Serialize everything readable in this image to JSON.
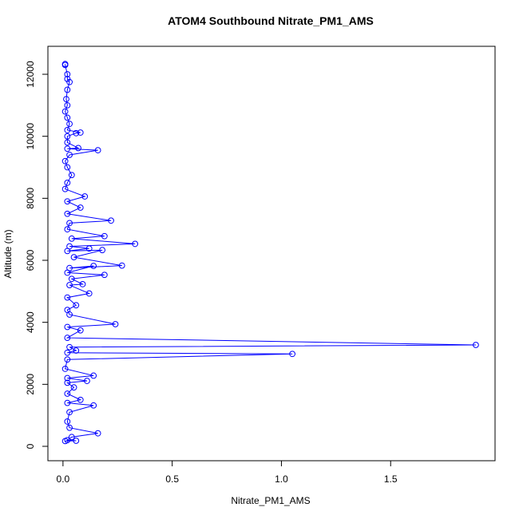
{
  "chart_data": {
    "type": "line",
    "title": "ATOM4 Southbound Nitrate_PM1_AMS",
    "x_label": "Nitrate_PM1_AMS",
    "y_label": "Altitude (m)",
    "color": "#0000ff",
    "markers": true,
    "x": [
      0.01,
      0.01,
      0.02,
      0.02,
      0.03,
      0.02,
      0.015,
      0.02,
      0.01,
      0.02,
      0.03,
      0.02,
      0.08,
      0.06,
      0.02,
      0.02,
      0.07,
      0.02,
      0.16,
      0.03,
      0.01,
      0.02,
      0.04,
      0.02,
      0.01,
      0.1,
      0.02,
      0.08,
      0.02,
      0.22,
      0.03,
      0.02,
      0.19,
      0.04,
      0.33,
      0.03,
      0.12,
      0.02,
      0.18,
      0.05,
      0.27,
      0.03,
      0.14,
      0.02,
      0.19,
      0.04,
      0.09,
      0.03,
      0.12,
      0.02,
      0.06,
      0.02,
      0.03,
      0.24,
      0.02,
      0.08,
      0.02,
      1.89,
      0.03,
      0.06,
      0.02,
      1.05,
      0.02,
      0.01,
      0.14,
      0.02,
      0.11,
      0.02,
      0.05,
      0.02,
      0.08,
      0.02,
      0.14,
      0.03,
      0.02,
      0.03,
      0.16,
      0.04,
      0.02,
      0.06,
      0.01
    ],
    "values": [
      12330,
      12300,
      12000,
      11850,
      11750,
      11500,
      11200,
      11000,
      10800,
      10600,
      10400,
      10200,
      10120,
      10100,
      10000,
      9800,
      9620,
      9600,
      9550,
      9400,
      9200,
      9000,
      8750,
      8500,
      8300,
      8060,
      7900,
      7700,
      7500,
      7280,
      7200,
      7000,
      6780,
      6700,
      6530,
      6450,
      6380,
      6300,
      6330,
      6100,
      5830,
      5750,
      5820,
      5600,
      5530,
      5400,
      5230,
      5200,
      4930,
      4800,
      4550,
      4400,
      4250,
      3940,
      3850,
      3740,
      3500,
      3270,
      3200,
      3090,
      3020,
      2980,
      2800,
      2500,
      2280,
      2200,
      2110,
      2050,
      1900,
      1700,
      1500,
      1400,
      1320,
      1100,
      800,
      600,
      420,
      300,
      200,
      180,
      170
    ],
    "xlim": [
      -0.069,
      1.978
    ],
    "ylim": [
      -464,
      12902
    ],
    "xticks": [
      {
        "value": 0,
        "label": "0.0"
      },
      0.5,
      {
        "value": 1,
        "label": "1.0"
      },
      1.5
    ],
    "yticks": [
      0,
      2000,
      4000,
      6000,
      8000,
      10000,
      12000
    ]
  }
}
